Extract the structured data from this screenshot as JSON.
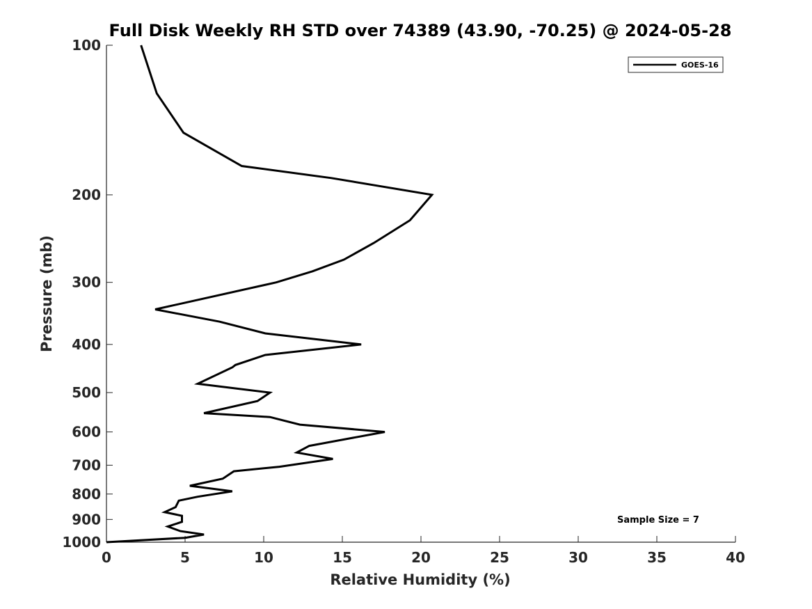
{
  "chart_data": {
    "type": "line",
    "title": "Full Disk Weekly RH STD over 74389 (43.90, -70.25) @ 2024-05-28",
    "xlabel": "Relative Humidity (%)",
    "ylabel": "Pressure (mb)",
    "xlim": [
      0,
      40
    ],
    "ylim": [
      100,
      1000
    ],
    "y_scale": "log",
    "y_reversed": true,
    "x_ticks": [
      0,
      5,
      10,
      15,
      20,
      25,
      30,
      35,
      40
    ],
    "y_ticks": [
      100,
      200,
      300,
      400,
      500,
      600,
      700,
      800,
      900,
      1000
    ],
    "grid": false,
    "legend_position": "top-right",
    "annotation": "Sample Size = 7",
    "series": [
      {
        "name": "GOES-16",
        "color": "#000000",
        "points": [
          [
            2.2,
            100
          ],
          [
            3.2,
            125
          ],
          [
            4.9,
            150
          ],
          [
            8.6,
            175
          ],
          [
            14.3,
            185
          ],
          [
            20.7,
            200
          ],
          [
            19.3,
            225
          ],
          [
            17.0,
            250
          ],
          [
            15.1,
            270
          ],
          [
            13.1,
            285
          ],
          [
            10.8,
            300
          ],
          [
            3.1,
            340
          ],
          [
            7.2,
            360
          ],
          [
            10.1,
            380
          ],
          [
            16.2,
            400
          ],
          [
            10.1,
            420
          ],
          [
            8.2,
            440
          ],
          [
            8.0,
            445
          ],
          [
            5.8,
            480
          ],
          [
            10.4,
            500
          ],
          [
            9.6,
            520
          ],
          [
            6.2,
            550
          ],
          [
            10.4,
            560
          ],
          [
            12.3,
            580
          ],
          [
            17.7,
            600
          ],
          [
            12.9,
            640
          ],
          [
            12.1,
            660
          ],
          [
            14.4,
            680
          ],
          [
            11.0,
            705
          ],
          [
            8.1,
            720
          ],
          [
            7.4,
            745
          ],
          [
            5.3,
            770
          ],
          [
            8.0,
            790
          ],
          [
            5.8,
            810
          ],
          [
            4.6,
            825
          ],
          [
            4.4,
            850
          ],
          [
            3.7,
            870
          ],
          [
            4.8,
            885
          ],
          [
            4.8,
            910
          ],
          [
            3.9,
            930
          ],
          [
            4.7,
            950
          ],
          [
            6.2,
            965
          ],
          [
            5.0,
            980
          ],
          [
            0.0,
            1000
          ]
        ]
      }
    ]
  }
}
